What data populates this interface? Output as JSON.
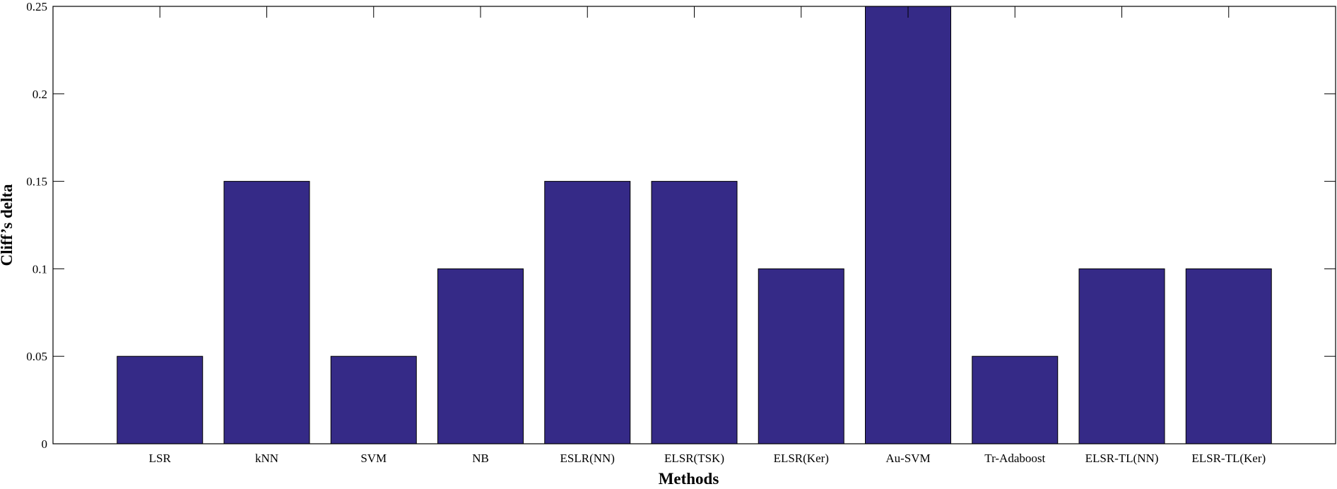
{
  "chart_data": {
    "type": "bar",
    "title": "",
    "xlabel": "Methods",
    "ylabel": "Cliff’s delta",
    "categories": [
      "LSR",
      "kNN",
      "SVM",
      "NB",
      "ESLR(NN)",
      "ELSR(TSK)",
      "ELSR(Ker)",
      "Au-SVM",
      "Tr-Adaboost",
      "ELSR-TL(NN)",
      "ELSR-TL(Ker)"
    ],
    "values": [
      0.05,
      0.15,
      0.05,
      0.1,
      0.15,
      0.15,
      0.1,
      0.25,
      0.05,
      0.1,
      0.1
    ],
    "ylim": [
      0,
      0.25
    ],
    "yticks": [
      "0",
      "0.05",
      "0.1",
      "0.15",
      "0.2",
      "0.25"
    ],
    "bar_color": "#352A87",
    "grid": false,
    "legend": "none"
  }
}
